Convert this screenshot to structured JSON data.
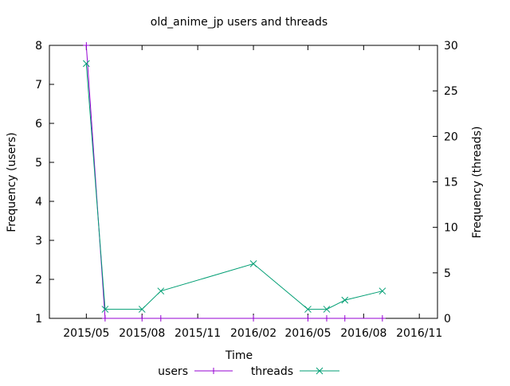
{
  "chart_data": {
    "type": "line",
    "title": "old_anime_jp users and threads",
    "xlabel": "Time",
    "ylabel_left": "Frequency (users)",
    "ylabel_right": "Frequency (threads)",
    "x_ticks": [
      "2015/05",
      "2015/08",
      "2015/11",
      "2016/02",
      "2016/05",
      "2016/08",
      "2016/11"
    ],
    "x_tick_dates": [
      "2015-05-01",
      "2015-08-01",
      "2015-11-01",
      "2016-02-01",
      "2016-05-01",
      "2016-08-01",
      "2016-11-01"
    ],
    "xlim": [
      "2015-03-01",
      "2016-12-01"
    ],
    "y_left_ticks": [
      "1",
      "2",
      "3",
      "4",
      "5",
      "6",
      "7",
      "8"
    ],
    "y_left_lim": [
      1,
      8
    ],
    "y_right_ticks": [
      "0",
      "5",
      "10",
      "15",
      "20",
      "25",
      "30"
    ],
    "y_right_lim": [
      0,
      30
    ],
    "grid": false,
    "legend_position": "bottom",
    "series": [
      {
        "name": "users",
        "axis": "left",
        "color": "#9400d3",
        "marker": "plus",
        "points": [
          {
            "x": "2015-05-01",
            "y": 8
          },
          {
            "x": "2015-06-01",
            "y": 1
          },
          {
            "x": "2015-08-01",
            "y": 1
          },
          {
            "x": "2015-09-01",
            "y": 1
          },
          {
            "x": "2016-02-01",
            "y": 1
          },
          {
            "x": "2016-05-01",
            "y": 1
          },
          {
            "x": "2016-06-01",
            "y": 1
          },
          {
            "x": "2016-07-01",
            "y": 1
          },
          {
            "x": "2016-09-01",
            "y": 1
          }
        ]
      },
      {
        "name": "threads",
        "axis": "right",
        "color": "#009e73",
        "marker": "cross",
        "points": [
          {
            "x": "2015-05-01",
            "y": 28
          },
          {
            "x": "2015-06-01",
            "y": 1
          },
          {
            "x": "2015-08-01",
            "y": 1
          },
          {
            "x": "2015-09-01",
            "y": 3
          },
          {
            "x": "2016-02-01",
            "y": 6
          },
          {
            "x": "2016-05-01",
            "y": 1
          },
          {
            "x": "2016-06-01",
            "y": 1
          },
          {
            "x": "2016-07-01",
            "y": 2
          },
          {
            "x": "2016-09-01",
            "y": 3
          }
        ]
      }
    ]
  }
}
